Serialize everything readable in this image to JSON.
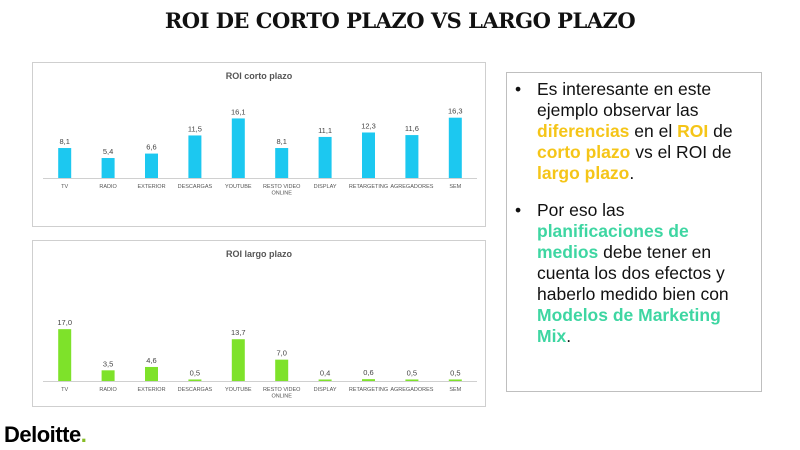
{
  "page": {
    "title": "ROI DE CORTO PLAZO VS LARGO PLAZO"
  },
  "chart_data": [
    {
      "type": "bar",
      "title": "ROI corto plazo",
      "categories": [
        "TV",
        "RADIO",
        "EXTERIOR",
        "DESCARGAS",
        "YOUTUBE",
        "RESTO VIDEO ONLINE",
        "DISPLAY",
        "RETARGETING",
        "AGREGADORES",
        "SEM"
      ],
      "category_lines": [
        [
          "TV"
        ],
        [
          "RADIO"
        ],
        [
          "EXTERIOR"
        ],
        [
          "DESCARGAS"
        ],
        [
          "YOUTUBE"
        ],
        [
          "RESTO VIDEO",
          "ONLINE"
        ],
        [
          "DISPLAY"
        ],
        [
          "RETARGETING"
        ],
        [
          "AGREGADORES"
        ],
        [
          "SEM"
        ]
      ],
      "values": [
        8.1,
        5.4,
        6.6,
        11.5,
        16.1,
        8.1,
        11.1,
        12.3,
        11.6,
        16.3
      ],
      "value_labels": [
        "8,1",
        "5,4",
        "6,6",
        "11,5",
        "16,1",
        "8,1",
        "11,1",
        "12,3",
        "11,6",
        "16,3"
      ],
      "ylim": [
        0,
        20
      ],
      "color": "#1cc8f0",
      "grid": false,
      "legend": "none"
    },
    {
      "type": "bar",
      "title": "ROI largo plazo",
      "categories": [
        "TV",
        "RADIO",
        "EXTERIOR",
        "DESCARGAS",
        "YOUTUBE",
        "RESTO VIDEO ONLINE",
        "DISPLAY",
        "RETARGETING",
        "AGREGADORES",
        "SEM"
      ],
      "category_lines": [
        [
          "TV"
        ],
        [
          "RADIO"
        ],
        [
          "EXTERIOR"
        ],
        [
          "DESCARGAS"
        ],
        [
          "YOUTUBE"
        ],
        [
          "RESTO VIDEO",
          "ONLINE"
        ],
        [
          "DISPLAY"
        ],
        [
          "RETARGETING"
        ],
        [
          "AGREGADORES"
        ],
        [
          "SEM"
        ]
      ],
      "values": [
        17.0,
        3.5,
        4.6,
        0.5,
        13.7,
        7.0,
        0.4,
        0.6,
        0.5,
        0.5
      ],
      "value_labels": [
        "17,0",
        "3,5",
        "4,6",
        "0,5",
        "13,7",
        "7,0",
        "0,4",
        "0,6",
        "0,5",
        "0,5"
      ],
      "ylim": [
        0,
        20
      ],
      "color": "#7ee22a",
      "grid": false,
      "legend": "none"
    }
  ],
  "text_panel": {
    "bullet_symbol": "•",
    "bullet1": {
      "t1": "Es interesante en este ejemplo observar las ",
      "h1": "diferencias",
      "t2": " en el ",
      "h2": "ROI",
      "t3": " de ",
      "h3": "corto plazo",
      "t4": " vs el ROI de ",
      "h4": "largo plazo",
      "t5": "."
    },
    "bullet2": {
      "t1": "Por eso las ",
      "h1": "planificaciones de medios",
      "t2": " debe tener en cuenta los dos efectos y haberlo medido bien con ",
      "h2": "Modelos de Marketing Mix",
      "t3": "."
    },
    "highlight_yellow": "#f5c518",
    "highlight_green": "#3ed6a2"
  },
  "logo": {
    "word": "Deloitte",
    "dot": ".",
    "dot_color": "#86bc25"
  }
}
